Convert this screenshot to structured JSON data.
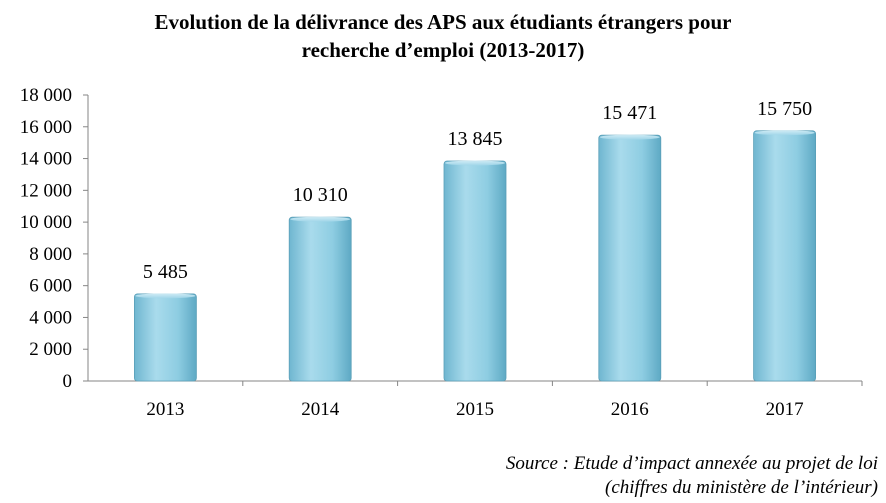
{
  "chart_data": {
    "type": "bar",
    "title_lines": [
      "Evolution de la délivrance des APS aux étudiants étrangers pour",
      "recherche d’emploi (2013-2017)"
    ],
    "categories": [
      "2013",
      "2014",
      "2015",
      "2016",
      "2017"
    ],
    "values": [
      5485,
      10310,
      13845,
      15471,
      15750
    ],
    "value_labels": [
      "5 485",
      "10 310",
      "13 845",
      "15 471",
      "15 750"
    ],
    "ylim": [
      0,
      18000
    ],
    "yticks": [
      0,
      2000,
      4000,
      6000,
      8000,
      10000,
      12000,
      14000,
      16000,
      18000
    ],
    "ytick_labels": [
      "0",
      "2 000",
      "4 000",
      "6 000",
      "8 000",
      "10 000",
      "12 000",
      "14 000",
      "16 000",
      "18 000"
    ],
    "xlabel": "",
    "ylabel": "",
    "grid": false,
    "legend": false,
    "bar_color": "#8ecde2"
  },
  "source_lines": [
    "Source : Etude d’impact annexée au projet de loi",
    "(chiffres du ministère de l’intérieur)"
  ]
}
